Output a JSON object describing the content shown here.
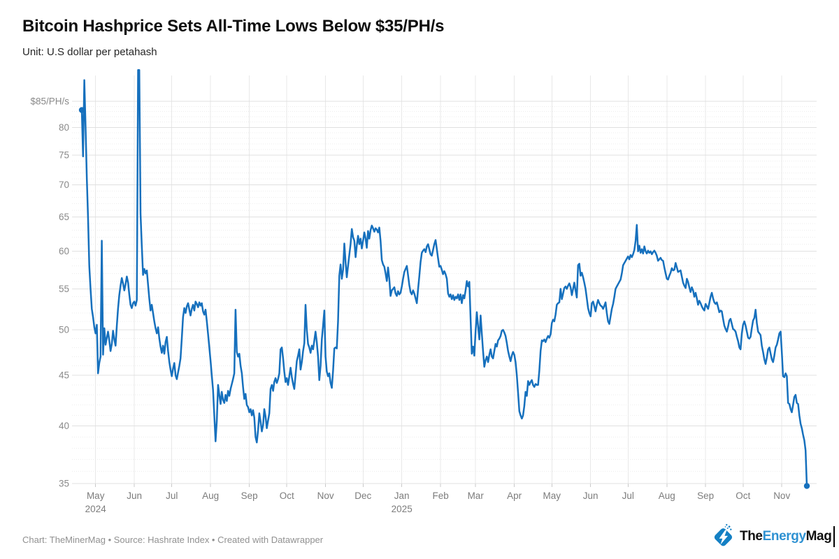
{
  "header": {
    "title": "Bitcoin Hashprice Sets All-Time Lows Below $35/PH/s",
    "subtitle": "Unit: U.S dollar per petahash"
  },
  "footer": {
    "text": "Chart: TheMinerMag • Source: Hashrate Index • Created with Datawrapper"
  },
  "logo": {
    "the": "The",
    "energy": "Energy",
    "mag": "Mag",
    "diamond_color": "#1480c4",
    "energy_color": "#2e91d2"
  },
  "chart_data": {
    "type": "line",
    "title": "Bitcoin Hashprice Sets All-Time Lows Below $35/PH/s",
    "subtitle": "Unit: U.S dollar per petahash",
    "series_name": "Bitcoin hashprice (USD per PH/s)",
    "line_color": "#1670bd",
    "grid": "on",
    "y_scale": "log",
    "ylim": [
      34.5,
      91.5
    ],
    "y_ticks": [
      {
        "v": 85,
        "label": "$85/PH/s"
      },
      {
        "v": 80,
        "label": "80"
      },
      {
        "v": 75,
        "label": "75"
      },
      {
        "v": 70,
        "label": "70"
      },
      {
        "v": 65,
        "label": "65"
      },
      {
        "v": 60,
        "label": "60"
      },
      {
        "v": 55,
        "label": "55"
      },
      {
        "v": 50,
        "label": "50"
      },
      {
        "v": 45,
        "label": "45"
      },
      {
        "v": 40,
        "label": "40"
      },
      {
        "v": 35,
        "label": "35"
      }
    ],
    "x_domain": [
      "2024-04-20",
      "2025-11-21"
    ],
    "x_months": [
      {
        "date": "2024-05-01",
        "label": "May",
        "year": "2024"
      },
      {
        "date": "2024-06-01",
        "label": "Jun"
      },
      {
        "date": "2024-07-01",
        "label": "Jul"
      },
      {
        "date": "2024-08-01",
        "label": "Aug"
      },
      {
        "date": "2024-09-01",
        "label": "Sep"
      },
      {
        "date": "2024-10-01",
        "label": "Oct"
      },
      {
        "date": "2024-11-01",
        "label": "Nov"
      },
      {
        "date": "2024-12-01",
        "label": "Dec"
      },
      {
        "date": "2025-01-01",
        "label": "Jan",
        "year": "2025"
      },
      {
        "date": "2025-02-01",
        "label": "Feb"
      },
      {
        "date": "2025-03-01",
        "label": "Mar"
      },
      {
        "date": "2025-04-01",
        "label": "Apr"
      },
      {
        "date": "2025-05-01",
        "label": "May"
      },
      {
        "date": "2025-06-01",
        "label": "Jun"
      },
      {
        "date": "2025-07-01",
        "label": "Jul"
      },
      {
        "date": "2025-08-01",
        "label": "Aug"
      },
      {
        "date": "2025-09-01",
        "label": "Sep"
      },
      {
        "date": "2025-10-01",
        "label": "Oct"
      },
      {
        "date": "2025-11-01",
        "label": "Nov"
      }
    ],
    "points_start_date": "2024-04-20",
    "points_daily_values": [
      83.3,
      74.8,
      89.3,
      80,
      71,
      65,
      58,
      55,
      52.5,
      51.5,
      50.3,
      49.6,
      50.6,
      45.2,
      46.3,
      47,
      61.5,
      47.2,
      50.2,
      48.3,
      49.1,
      49.8,
      48.8,
      47.6,
      48.4,
      49.9,
      48.9,
      48.2,
      50.5,
      52.5,
      54.2,
      55.4,
      56.4,
      55.7,
      54.8,
      55.6,
      56.6,
      55.8,
      54.3,
      53,
      52.6,
      53.2,
      53.4,
      52.9,
      53.6,
      91.4,
      91.4,
      65.5,
      60.8,
      56.8,
      57.6,
      57,
      57.4,
      55.5,
      53.8,
      52.3,
      53,
      52,
      51,
      50.2,
      49.6,
      50.3,
      49,
      48.1,
      47.4,
      48.2,
      47.3,
      48.6,
      49.2,
      47.6,
      46.4,
      45.6,
      44.9,
      45.7,
      46.3,
      45,
      44.6,
      45.3,
      46,
      46.8,
      49,
      51.5,
      52.6,
      52,
      52.8,
      53.2,
      52.4,
      51.7,
      52.5,
      53,
      52.3,
      53.4,
      53.1,
      52.7,
      53.3,
      52.9,
      53.2,
      52.2,
      51.8,
      52.4,
      51,
      49.5,
      48,
      46.5,
      45,
      43.5,
      41,
      38.6,
      40.5,
      44,
      43,
      42.1,
      43.3,
      42.5,
      42.2,
      43,
      42.4,
      43.4,
      42.9,
      43.6,
      44.1,
      44.6,
      45.2,
      52.4,
      47.5,
      47,
      47.3,
      46,
      45.2,
      43.8,
      42.6,
      43.1,
      42,
      41.8,
      41.3,
      41.6,
      41,
      41.5,
      40.8,
      39,
      38.5,
      39.6,
      41.2,
      40.4,
      39.5,
      40.1,
      41.6,
      40.9,
      39.8,
      40.5,
      41.2,
      43.6,
      44,
      43.4,
      44.3,
      44.7,
      44.2,
      44.6,
      45.2,
      47.8,
      48,
      46.8,
      45.4,
      44.3,
      44.7,
      44,
      44.9,
      45.8,
      44.8,
      44.1,
      43.6,
      45,
      46.5,
      47.1,
      47.8,
      45.6,
      46.4,
      47.6,
      48.5,
      53,
      50,
      48.4,
      48,
      47.4,
      48.2,
      47.8,
      48.8,
      49.8,
      48.6,
      47,
      44.5,
      46,
      48.9,
      50.5,
      52.3,
      47,
      45.4,
      44.9,
      45.2,
      44.2,
      43.7,
      45.5,
      47.9,
      48,
      47.9,
      51,
      56.7,
      58.2,
      56.3,
      57.5,
      61.1,
      58.5,
      56.5,
      58,
      59.5,
      61,
      63.2,
      62,
      61.5,
      59.2,
      60.8,
      62.2,
      61,
      61.8,
      60.4,
      61.5,
      62.7,
      61.8,
      60.5,
      62.9,
      61.8,
      63,
      63.7,
      63.3,
      62.8,
      63.3,
      63.1,
      62.7,
      63.4,
      61.5,
      58.8,
      58.2,
      57.9,
      57,
      56,
      57.8,
      56.3,
      54.1,
      54.8,
      55,
      55.2,
      54.4,
      54.1,
      54.7,
      54.3,
      54.5,
      55.3,
      56.3,
      57.2,
      57.6,
      58,
      56.8,
      55.5,
      54.6,
      54.3,
      54.8,
      54.4,
      53.8,
      53.2,
      55,
      56.6,
      58.5,
      59.8,
      60.1,
      60.3,
      59.9,
      60.7,
      61,
      60.3,
      59.6,
      59.4,
      60.2,
      61,
      61.6,
      60.3,
      59,
      57.9,
      58,
      57.5,
      56.9,
      57.3,
      56.9,
      56.3,
      54.4,
      54,
      54.3,
      53.7,
      54.2,
      53.6,
      54,
      53.8,
      54.3,
      53.6,
      54.3,
      53.2,
      54.2,
      53.8,
      54.8,
      56,
      55.3,
      55.9,
      51.5,
      47.3,
      48.1,
      47.1,
      49.8,
      52.1,
      50.4,
      48.9,
      51.7,
      49.6,
      47.6,
      45.9,
      46.6,
      47,
      46.4,
      47.2,
      47.8,
      47,
      46.8,
      47.6,
      48.4,
      48.1,
      48.8,
      49,
      49.3,
      49.9,
      50,
      49.7,
      49.3,
      48.5,
      47.6,
      47,
      46.5,
      47.1,
      47.5,
      47.2,
      46.4,
      45,
      43.2,
      41.4,
      41,
      40.7,
      41,
      41.9,
      43.3,
      42.9,
      44.4,
      44,
      44.3,
      44.5,
      44,
      43.8,
      44.1,
      44,
      44,
      45.5,
      47.6,
      48.8,
      48.7,
      48.9,
      48.6,
      49,
      49.3,
      49.1,
      49.5,
      50.8,
      51.2,
      51,
      51.8,
      53,
      53.2,
      53.3,
      55,
      53.7,
      54.4,
      55.1,
      55.3,
      55,
      55.4,
      55.7,
      55.2,
      54.2,
      55,
      55.8,
      54.8,
      53.9,
      58.1,
      58.3,
      56.7,
      57.1,
      56.5,
      55.8,
      55,
      53.8,
      52.6,
      52,
      51.6,
      53.2,
      53.4,
      52.8,
      52.2,
      53,
      53.6,
      53.2,
      52.9,
      52.8,
      52.5,
      52.9,
      53.3,
      52,
      51,
      50.7,
      51.6,
      52.5,
      53.1,
      54,
      55,
      55.3,
      55.6,
      55.9,
      56.2,
      57,
      58.1,
      58.4,
      58.7,
      59,
      59.3,
      58.9,
      59.5,
      59.2,
      59.6,
      60.2,
      61.5,
      63.8,
      60,
      60.8,
      59.8,
      60.3,
      59.7,
      60.7,
      60,
      59.7,
      60.1,
      59.8,
      60,
      59.6,
      59.9,
      60.1,
      59.8,
      59.4,
      58.7,
      58.9,
      59.1,
      58.8,
      58.7,
      57.8,
      57,
      56.3,
      56.2,
      56.7,
      57.1,
      57.7,
      57.4,
      57.5,
      58.4,
      57.8,
      57.2,
      57.3,
      57.4,
      56.6,
      55.8,
      55.4,
      55.1,
      56.3,
      55.9,
      55.2,
      54.6,
      55.2,
      54.8,
      54,
      54.5,
      53.8,
      53,
      53.5,
      53.2,
      52.8,
      52.5,
      52.3,
      53.1,
      52.8,
      52.5,
      53.2,
      54,
      54.5,
      53.8,
      53.3,
      53.1,
      53.3,
      52.7,
      52.1,
      52.3,
      52.2,
      51.3,
      50.5,
      50.1,
      49.8,
      50.4,
      51.1,
      51.3,
      50.7,
      50.1,
      50,
      49.8,
      49.2,
      48.7,
      48,
      47.8,
      49.6,
      50.6,
      51,
      50.5,
      49.8,
      49.1,
      49,
      49.2,
      50.2,
      51.1,
      51.4,
      52.4,
      50.8,
      49.8,
      49.6,
      49.4,
      48.2,
      47.5,
      46.7,
      46.2,
      46.9,
      47.8,
      48,
      47.3,
      46.7,
      46.4,
      47.1,
      48,
      48.3,
      48.9,
      49.6,
      49.8,
      47.5,
      44.9,
      44.8,
      45.2,
      44.9,
      42.2,
      42.1,
      41.6,
      41.3,
      42,
      42.8,
      43,
      42.2,
      42.1,
      41,
      40.2,
      39.8,
      39.2,
      38.7,
      37.8,
      34.8
    ],
    "end_point_value": 34.8,
    "start_point_value": 83.3
  }
}
